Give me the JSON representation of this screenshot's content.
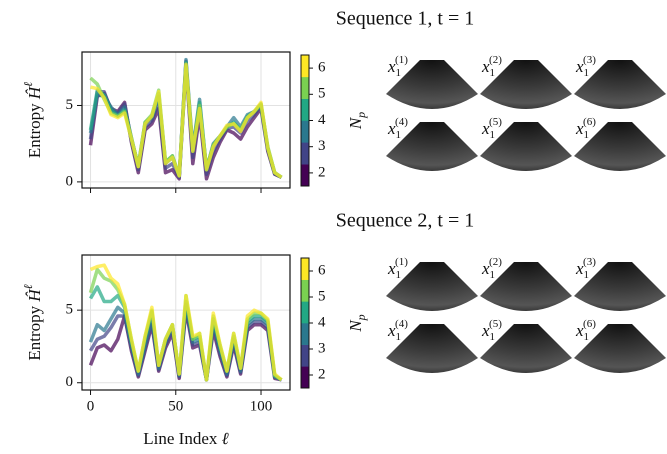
{
  "chart_data": [
    {
      "type": "line",
      "title": "Sequence 1, t = 1",
      "y_label": "Entropy ",
      "y_label_symbol": "Ĥ",
      "y_label_superscript": "ℓ",
      "x": [
        0,
        4,
        8,
        12,
        16,
        20,
        24,
        28,
        32,
        36,
        40,
        44,
        48,
        52,
        56,
        60,
        64,
        68,
        72,
        76,
        80,
        84,
        88,
        92,
        96,
        100,
        104,
        108,
        112
      ],
      "series": [
        {
          "color": "#440154",
          "values": [
            2.4,
            5.6,
            5.8,
            4.8,
            4.6,
            5.2,
            2.6,
            0.6,
            3.4,
            3.8,
            4.8,
            0.6,
            0.8,
            0.2,
            7.6,
            1.2,
            4.4,
            0.2,
            1.6,
            2.6,
            3.4,
            3.2,
            2.8,
            3.6,
            4.2,
            4.8,
            2.0,
            0.5,
            0.3
          ]
        },
        {
          "color": "#414487",
          "values": [
            2.8,
            5.9,
            5.9,
            4.7,
            4.5,
            5.1,
            2.7,
            0.8,
            3.6,
            4.0,
            5.2,
            0.9,
            1.2,
            0.3,
            7.9,
            1.6,
            4.8,
            0.5,
            2.0,
            2.8,
            3.5,
            3.6,
            3.2,
            4.0,
            4.4,
            5.0,
            2.1,
            0.5,
            0.3
          ]
        },
        {
          "color": "#2a788e",
          "values": [
            3.2,
            5.7,
            5.6,
            4.9,
            4.4,
            4.9,
            2.9,
            1.0,
            3.8,
            4.2,
            5.6,
            1.2,
            1.6,
            0.4,
            8.0,
            2.2,
            5.4,
            0.8,
            2.5,
            3.0,
            3.6,
            4.2,
            3.6,
            4.4,
            4.6,
            5.1,
            2.2,
            0.6,
            0.3
          ]
        },
        {
          "color": "#22a884",
          "values": [
            3.4,
            6.0,
            5.7,
            4.7,
            4.3,
            4.7,
            2.8,
            1.1,
            3.9,
            4.3,
            5.8,
            1.3,
            1.7,
            0.4,
            7.8,
            2.0,
            5.2,
            0.8,
            2.4,
            3.0,
            3.6,
            3.9,
            3.4,
            4.3,
            4.6,
            5.0,
            2.2,
            0.6,
            0.3
          ]
        },
        {
          "color": "#7ad151",
          "values": [
            6.8,
            6.4,
            5.4,
            4.5,
            4.3,
            4.6,
            2.9,
            1.0,
            3.9,
            4.4,
            6.0,
            1.3,
            1.7,
            0.4,
            7.6,
            2.1,
            5.0,
            0.9,
            2.4,
            3.0,
            3.6,
            3.8,
            3.4,
            4.2,
            4.6,
            5.1,
            2.3,
            0.6,
            0.3
          ]
        },
        {
          "color": "#fde725",
          "values": [
            6.2,
            6.1,
            5.5,
            4.4,
            4.2,
            4.5,
            2.8,
            1.0,
            3.8,
            4.3,
            5.9,
            1.2,
            1.6,
            0.4,
            7.7,
            2.0,
            4.8,
            0.8,
            2.3,
            3.0,
            3.7,
            3.8,
            3.3,
            4.2,
            4.6,
            5.2,
            2.2,
            0.6,
            0.3
          ]
        }
      ],
      "xlim": [
        -5,
        117
      ],
      "ylim": [
        -0.4,
        8.5
      ],
      "xticks": [
        0,
        50,
        100
      ],
      "yticks": [
        0,
        5
      ],
      "show_xtick_labels": false,
      "grid": true,
      "colorbar": {
        "label": "N",
        "label_subscript": "p",
        "lim": [
          1.5,
          6.5
        ],
        "ticks": [
          2,
          3,
          4,
          5,
          6
        ]
      },
      "images": [
        {
          "base": "x",
          "sub": "1",
          "sup": "(1)"
        },
        {
          "base": "x",
          "sub": "1",
          "sup": "(2)"
        },
        {
          "base": "x",
          "sub": "1",
          "sup": "(3)"
        },
        {
          "base": "x",
          "sub": "1",
          "sup": "(4)"
        },
        {
          "base": "x",
          "sub": "1",
          "sup": "(5)"
        },
        {
          "base": "x",
          "sub": "1",
          "sup": "(6)"
        }
      ]
    },
    {
      "type": "line",
      "title": "Sequence 2, t = 1",
      "y_label": "Entropy ",
      "y_label_symbol": "Ĥ",
      "y_label_superscript": "ℓ",
      "x_label": "Line Index ",
      "x_label_symbol": "ℓ",
      "x": [
        0,
        4,
        8,
        12,
        16,
        20,
        24,
        28,
        32,
        36,
        40,
        44,
        48,
        52,
        56,
        60,
        64,
        68,
        72,
        76,
        80,
        84,
        88,
        92,
        96,
        100,
        104,
        108,
        112
      ],
      "series": [
        {
          "color": "#440154",
          "values": [
            1.2,
            2.4,
            2.6,
            2.2,
            3.0,
            4.6,
            2.2,
            0.4,
            2.2,
            4.0,
            0.8,
            2.4,
            3.4,
            0.3,
            5.0,
            2.4,
            2.6,
            0.2,
            3.6,
            1.8,
            0.4,
            2.6,
            0.6,
            3.6,
            4.0,
            4.0,
            3.6,
            0.3,
            0.2
          ]
        },
        {
          "color": "#414487",
          "values": [
            2.2,
            3.0,
            3.2,
            3.8,
            4.6,
            4.6,
            2.4,
            0.5,
            2.4,
            4.2,
            0.9,
            2.6,
            3.6,
            0.4,
            5.2,
            2.6,
            2.8,
            0.2,
            4.0,
            2.0,
            0.5,
            2.8,
            0.7,
            3.8,
            4.2,
            4.2,
            3.8,
            0.4,
            0.2
          ]
        },
        {
          "color": "#2a788e",
          "values": [
            2.8,
            4.0,
            3.6,
            4.4,
            5.2,
            4.8,
            2.6,
            0.6,
            2.6,
            4.4,
            1.0,
            2.8,
            3.8,
            0.5,
            5.4,
            2.8,
            3.0,
            0.2,
            4.2,
            2.2,
            0.6,
            3.0,
            0.8,
            4.0,
            4.4,
            4.4,
            4.0,
            0.4,
            0.2
          ]
        },
        {
          "color": "#22a884",
          "values": [
            5.8,
            6.6,
            5.6,
            5.6,
            6.0,
            5.2,
            2.8,
            0.8,
            3.0,
            4.9,
            1.2,
            3.0,
            4.0,
            0.6,
            5.6,
            3.0,
            3.2,
            0.2,
            4.4,
            2.4,
            0.8,
            3.2,
            1.0,
            4.2,
            4.6,
            4.6,
            4.2,
            0.5,
            0.2
          ]
        },
        {
          "color": "#7ad151",
          "values": [
            6.2,
            7.8,
            7.2,
            7.0,
            6.4,
            5.4,
            3.0,
            0.8,
            3.2,
            5.0,
            1.2,
            3.0,
            4.0,
            0.6,
            6.0,
            3.0,
            3.4,
            0.2,
            4.6,
            2.6,
            0.8,
            3.4,
            1.0,
            4.4,
            4.8,
            4.8,
            4.3,
            0.5,
            0.2
          ]
        },
        {
          "color": "#fde725",
          "values": [
            7.8,
            8.0,
            8.1,
            7.2,
            6.8,
            5.4,
            3.0,
            0.8,
            3.2,
            5.2,
            1.2,
            3.0,
            4.0,
            0.6,
            6.0,
            3.2,
            3.4,
            0.2,
            4.8,
            2.6,
            0.8,
            3.4,
            1.0,
            4.6,
            5.0,
            4.8,
            4.4,
            0.6,
            0.2
          ]
        }
      ],
      "xlim": [
        -5,
        117
      ],
      "ylim": [
        -0.5,
        8.8
      ],
      "xticks": [
        0,
        50,
        100
      ],
      "yticks": [
        0,
        5
      ],
      "show_xtick_labels": true,
      "grid": true,
      "colorbar": {
        "label": "N",
        "label_subscript": "p",
        "lim": [
          1.5,
          6.5
        ],
        "ticks": [
          2,
          3,
          4,
          5,
          6
        ]
      },
      "images": [
        {
          "base": "x",
          "sub": "1",
          "sup": "(1)"
        },
        {
          "base": "x",
          "sub": "1",
          "sup": "(2)"
        },
        {
          "base": "x",
          "sub": "1",
          "sup": "(3)"
        },
        {
          "base": "x",
          "sub": "1",
          "sup": "(4)"
        },
        {
          "base": "x",
          "sub": "1",
          "sup": "(5)"
        },
        {
          "base": "x",
          "sub": "1",
          "sup": "(6)"
        }
      ]
    }
  ]
}
